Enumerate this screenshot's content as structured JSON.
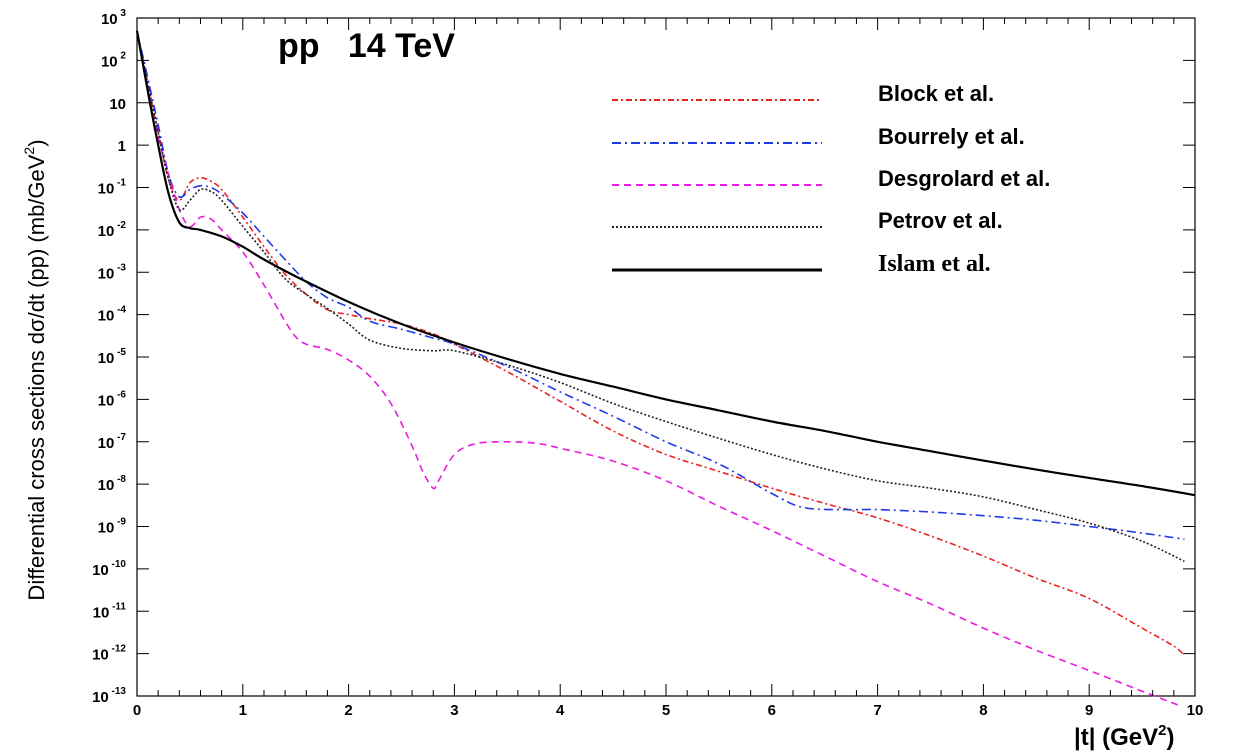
{
  "chart_data": {
    "type": "line",
    "title": "pp   14 TeV",
    "xlabel": "|t| (GeV²)",
    "xlabel_main": "|t| (GeV",
    "xlabel_sup": "2",
    "xlabel_end": ")",
    "ylabel": "Differential cross sections dσ/dt (pp) (mb/GeV²)",
    "ylabel_main": "Differential cross sections dσ/dt (pp) (mb/GeV",
    "ylabel_sup": "2",
    "ylabel_end": ")",
    "xlim": [
      0,
      10
    ],
    "ylim_log10": [
      -13,
      3
    ],
    "yscale": "log",
    "grid": false,
    "legend_position": "top-right",
    "x_ticks": [
      "0",
      "1",
      "2",
      "3",
      "4",
      "5",
      "6",
      "7",
      "8",
      "9",
      "10"
    ],
    "y_ticks": [
      {
        "base": "10",
        "exp": "3"
      },
      {
        "base": "10",
        "exp": "2"
      },
      {
        "base": "10",
        "exp": ""
      },
      {
        "base": "1",
        "exp": ""
      },
      {
        "base": "10",
        "exp": "-1"
      },
      {
        "base": "10",
        "exp": "-2"
      },
      {
        "base": "10",
        "exp": "-3"
      },
      {
        "base": "10",
        "exp": "-4"
      },
      {
        "base": "10",
        "exp": "-5"
      },
      {
        "base": "10",
        "exp": "-6"
      },
      {
        "base": "10",
        "exp": "-7"
      },
      {
        "base": "10",
        "exp": "-8"
      },
      {
        "base": "10",
        "exp": "-9"
      },
      {
        "base": "10",
        "exp": "-10"
      },
      {
        "base": "10",
        "exp": "-11"
      },
      {
        "base": "10",
        "exp": "-12"
      },
      {
        "base": "10",
        "exp": "-13"
      }
    ],
    "series": [
      {
        "name": "Block et al.",
        "color": "#e8231d",
        "dash": "6 3 2 3",
        "points": [
          [
            0,
            500
          ],
          [
            0.1,
            30
          ],
          [
            0.2,
            2
          ],
          [
            0.3,
            0.15
          ],
          [
            0.4,
            0.05
          ],
          [
            0.5,
            0.13
          ],
          [
            0.6,
            0.17
          ],
          [
            0.7,
            0.14
          ],
          [
            0.8,
            0.09
          ],
          [
            1.0,
            0.02
          ],
          [
            1.2,
            0.004
          ],
          [
            1.4,
            0.0009
          ],
          [
            1.6,
            0.0003
          ],
          [
            1.8,
            0.00013
          ],
          [
            2.0,
            0.0001
          ],
          [
            2.2,
            8e-05
          ],
          [
            2.5,
            6e-05
          ],
          [
            2.8,
            3.5e-05
          ],
          [
            3.0,
            2e-05
          ],
          [
            3.5,
            4.5e-06
          ],
          [
            4.0,
            9e-07
          ],
          [
            4.5,
            1.8e-07
          ],
          [
            5.0,
            5e-08
          ],
          [
            5.5,
            2e-08
          ],
          [
            6.0,
            8e-09
          ],
          [
            6.5,
            3.5e-09
          ],
          [
            7.0,
            1.6e-09
          ],
          [
            7.5,
            6e-10
          ],
          [
            8.0,
            2e-10
          ],
          [
            8.5,
            6e-11
          ],
          [
            9.0,
            2e-11
          ],
          [
            9.5,
            4e-12
          ],
          [
            9.8,
            1.5e-12
          ],
          [
            9.9,
            9e-13
          ]
        ]
      },
      {
        "name": "Bourrely et al.",
        "color": "#1d3ae8",
        "dash": "9 4 2 4",
        "points": [
          [
            0,
            500
          ],
          [
            0.1,
            40
          ],
          [
            0.2,
            3
          ],
          [
            0.3,
            0.2
          ],
          [
            0.4,
            0.06
          ],
          [
            0.5,
            0.09
          ],
          [
            0.6,
            0.11
          ],
          [
            0.7,
            0.1
          ],
          [
            0.8,
            0.07
          ],
          [
            1.0,
            0.025
          ],
          [
            1.2,
            0.007
          ],
          [
            1.4,
            0.002
          ],
          [
            1.6,
            0.0006
          ],
          [
            1.8,
            0.00025
          ],
          [
            2.0,
            0.00015
          ],
          [
            2.2,
            7e-05
          ],
          [
            2.5,
            4.5e-05
          ],
          [
            2.8,
            2.8e-05
          ],
          [
            3.0,
            2e-05
          ],
          [
            3.5,
            6e-06
          ],
          [
            4.0,
            1.5e-06
          ],
          [
            4.5,
            4e-07
          ],
          [
            5.0,
            1e-07
          ],
          [
            5.5,
            3e-08
          ],
          [
            6.0,
            6e-09
          ],
          [
            6.3,
            2.8e-09
          ],
          [
            6.7,
            2.5e-09
          ],
          [
            7.0,
            2.5e-09
          ],
          [
            7.5,
            2.2e-09
          ],
          [
            8.0,
            1.8e-09
          ],
          [
            8.5,
            1.4e-09
          ],
          [
            9.0,
            1e-09
          ],
          [
            9.5,
            7e-10
          ],
          [
            9.9,
            5e-10
          ]
        ]
      },
      {
        "name": "Desgrolard et al.",
        "color": "#e81de0",
        "dash": "7 5",
        "points": [
          [
            0,
            500
          ],
          [
            0.1,
            20
          ],
          [
            0.2,
            1.5
          ],
          [
            0.3,
            0.2
          ],
          [
            0.4,
            0.03
          ],
          [
            0.5,
            0.012
          ],
          [
            0.6,
            0.02
          ],
          [
            0.7,
            0.018
          ],
          [
            0.8,
            0.01
          ],
          [
            1.0,
            0.003
          ],
          [
            1.2,
            0.0005
          ],
          [
            1.4,
            7e-05
          ],
          [
            1.5,
            3e-05
          ],
          [
            1.6,
            2e-05
          ],
          [
            1.8,
            1.5e-05
          ],
          [
            2.0,
            8.5e-06
          ],
          [
            2.2,
            3.5e-06
          ],
          [
            2.4,
            8e-07
          ],
          [
            2.6,
            8e-08
          ],
          [
            2.7,
            2e-08
          ],
          [
            2.8,
            8e-09
          ],
          [
            2.85,
            1.2e-08
          ],
          [
            3.0,
            5e-08
          ],
          [
            3.2,
            9e-08
          ],
          [
            3.5,
            1e-07
          ],
          [
            3.8,
            9e-08
          ],
          [
            4.0,
            7e-08
          ],
          [
            4.5,
            3.5e-08
          ],
          [
            5.0,
            1.2e-08
          ],
          [
            5.5,
            3e-09
          ],
          [
            6.0,
            8e-10
          ],
          [
            6.5,
            2e-10
          ],
          [
            7.0,
            5e-11
          ],
          [
            7.5,
            1.5e-11
          ],
          [
            8.0,
            4e-12
          ],
          [
            8.5,
            1.2e-12
          ],
          [
            9.0,
            4e-13
          ],
          [
            9.5,
            1.3e-13
          ],
          [
            9.85,
            6e-14
          ]
        ]
      },
      {
        "name": "Petrov et al.",
        "color": "#222222",
        "dash": "2 2",
        "points": [
          [
            0,
            500
          ],
          [
            0.1,
            30
          ],
          [
            0.2,
            2
          ],
          [
            0.3,
            0.15
          ],
          [
            0.4,
            0.03
          ],
          [
            0.5,
            0.05
          ],
          [
            0.6,
            0.09
          ],
          [
            0.7,
            0.08
          ],
          [
            0.8,
            0.05
          ],
          [
            1.0,
            0.012
          ],
          [
            1.2,
            0.003
          ],
          [
            1.4,
            0.0007
          ],
          [
            1.6,
            0.0003
          ],
          [
            1.8,
            0.00014
          ],
          [
            2.0,
            6e-05
          ],
          [
            2.2,
            2.5e-05
          ],
          [
            2.5,
            1.6e-05
          ],
          [
            2.8,
            1.4e-05
          ],
          [
            3.0,
            1.4e-05
          ],
          [
            3.5,
            6.5e-06
          ],
          [
            4.0,
            2.5e-06
          ],
          [
            4.5,
            8e-07
          ],
          [
            5.0,
            3e-07
          ],
          [
            5.5,
            1.2e-07
          ],
          [
            6.0,
            5e-08
          ],
          [
            6.5,
            2.3e-08
          ],
          [
            7.0,
            1.2e-08
          ],
          [
            7.5,
            8e-09
          ],
          [
            8.0,
            5e-09
          ],
          [
            8.5,
            2.5e-09
          ],
          [
            9.0,
            1.2e-09
          ],
          [
            9.5,
            4.5e-10
          ],
          [
            9.9,
            1.5e-10
          ]
        ]
      },
      {
        "name": "Islam et al.",
        "color": "#000000",
        "dash": "",
        "points": [
          [
            0,
            500
          ],
          [
            0.1,
            20
          ],
          [
            0.2,
            1
          ],
          [
            0.3,
            0.07
          ],
          [
            0.4,
            0.015
          ],
          [
            0.5,
            0.011
          ],
          [
            0.6,
            0.01
          ],
          [
            0.8,
            0.007
          ],
          [
            1.0,
            0.004
          ],
          [
            1.2,
            0.002
          ],
          [
            1.5,
            0.0008
          ],
          [
            2.0,
            0.0002
          ],
          [
            2.5,
            6e-05
          ],
          [
            3.0,
            2.2e-05
          ],
          [
            3.5,
            9e-06
          ],
          [
            4.0,
            4e-06
          ],
          [
            4.5,
            2e-06
          ],
          [
            5.0,
            1e-06
          ],
          [
            5.5,
            5.5e-07
          ],
          [
            6.0,
            3e-07
          ],
          [
            6.5,
            1.8e-07
          ],
          [
            7.0,
            1e-07
          ],
          [
            7.5,
            6e-08
          ],
          [
            8.0,
            3.6e-08
          ],
          [
            8.5,
            2.2e-08
          ],
          [
            9.0,
            1.4e-08
          ],
          [
            9.5,
            9e-09
          ],
          [
            10.0,
            5.5e-09
          ]
        ]
      }
    ]
  }
}
